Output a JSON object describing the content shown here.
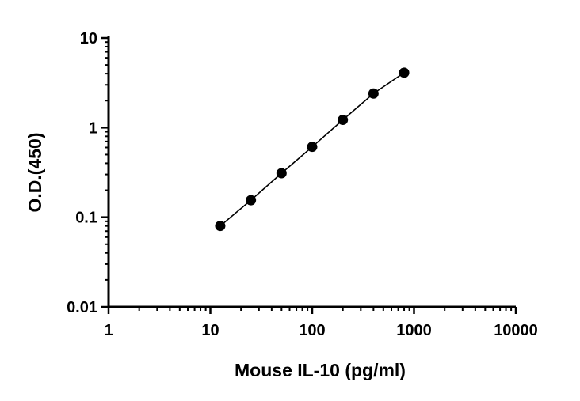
{
  "chart_data": {
    "type": "scatter",
    "title": "",
    "xlabel": "Mouse IL-10 (pg/ml)",
    "ylabel": "O.D.(450)",
    "x_scale": "log",
    "y_scale": "log",
    "xlim": [
      1,
      10000
    ],
    "ylim": [
      0.01,
      10
    ],
    "x_ticks": [
      1,
      10,
      100,
      1000,
      10000
    ],
    "x_tick_labels": [
      "1",
      "10",
      "100",
      "1000",
      "10000"
    ],
    "y_ticks": [
      0.01,
      0.1,
      1,
      10
    ],
    "y_tick_labels": [
      "0.01",
      "0.1",
      "1",
      "10"
    ],
    "grid": false,
    "legend": "none",
    "series": [
      {
        "x": [
          12.5,
          25,
          50,
          100,
          200,
          400,
          800
        ],
        "y": [
          0.08,
          0.155,
          0.31,
          0.61,
          1.22,
          2.4,
          4.1
        ],
        "fit_line": true,
        "color": "#000000"
      }
    ]
  }
}
